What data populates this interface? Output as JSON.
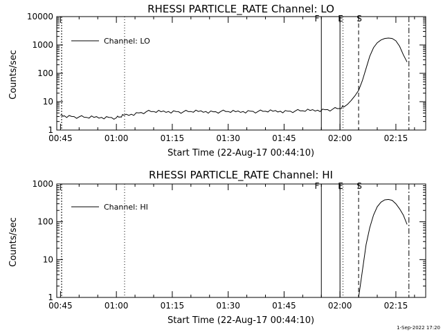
{
  "footer_date": "1-Sep-2022 17:20",
  "chart_data": [
    {
      "type": "line",
      "title": "RHESSI PARTICLE_RATE Channel: LO",
      "xlabel": "Start Time (22-Aug-17 00:44:10)",
      "ylabel": "Counts/sec",
      "x_ticks": [
        "00:45",
        "01:00",
        "01:15",
        "01:30",
        "01:45",
        "02:00",
        "02:15"
      ],
      "y_ticks": [
        "1",
        "10",
        "100",
        "1000",
        "10000"
      ],
      "xlim": [
        "00:44",
        "02:23"
      ],
      "ylim": [
        1,
        10000
      ],
      "y_scale": "log",
      "grid": false,
      "legend_position": "top-left",
      "series": [
        {
          "name": "Channel: LO",
          "x": [
            "00:45",
            "00:46",
            "00:48",
            "00:50",
            "00:52",
            "00:54",
            "00:56",
            "00:58",
            "01:00",
            "01:01",
            "01:02",
            "01:04",
            "01:06",
            "01:08",
            "01:10",
            "01:12",
            "01:14",
            "01:16",
            "01:18",
            "01:20",
            "01:22",
            "01:24",
            "01:26",
            "01:28",
            "01:30",
            "01:32",
            "01:34",
            "01:36",
            "01:38",
            "01:40",
            "01:42",
            "01:44",
            "01:46",
            "01:48",
            "01:50",
            "01:52",
            "01:54",
            "01:56",
            "01:58",
            "02:00",
            "02:01",
            "02:02",
            "02:03",
            "02:04",
            "02:05",
            "02:06",
            "02:07",
            "02:08",
            "02:09",
            "02:10",
            "02:11",
            "02:12",
            "02:13",
            "02:14",
            "02:15",
            "02:16",
            "02:17",
            "02:18"
          ],
          "values": [
            3.3,
            3.2,
            3.0,
            2.9,
            2.8,
            2.8,
            2.8,
            2.8,
            2.7,
            2.9,
            3.3,
            3.6,
            4.0,
            4.4,
            4.5,
            4.4,
            4.5,
            4.5,
            4.4,
            4.5,
            4.5,
            4.5,
            4.4,
            4.5,
            4.5,
            4.4,
            4.5,
            4.6,
            4.5,
            4.6,
            4.6,
            4.6,
            4.6,
            4.7,
            4.8,
            4.9,
            5.0,
            5.2,
            5.4,
            5.8,
            6.5,
            8,
            11,
            16,
            25,
            55,
            150,
            400,
            800,
            1200,
            1500,
            1700,
            1750,
            1700,
            1400,
            900,
            450,
            250
          ]
        }
      ],
      "markers": [
        {
          "label": "F",
          "x": "01:55",
          "style": "solid"
        },
        {
          "label": "E",
          "x": "02:00",
          "style": "solid"
        },
        {
          "label": "S",
          "x": "02:05",
          "style": "dashed"
        }
      ]
    },
    {
      "type": "line",
      "title": "RHESSI PARTICLE_RATE Channel: HI",
      "xlabel": "Start Time (22-Aug-17 00:44:10)",
      "ylabel": "Counts/sec",
      "x_ticks": [
        "00:45",
        "01:00",
        "01:15",
        "01:30",
        "01:45",
        "02:00",
        "02:15"
      ],
      "y_ticks": [
        "1",
        "10",
        "100",
        "1000"
      ],
      "xlim": [
        "00:44",
        "02:23"
      ],
      "ylim": [
        1,
        1000
      ],
      "y_scale": "log",
      "grid": false,
      "legend_position": "top-left",
      "series": [
        {
          "name": "Channel: HI",
          "x": [
            "02:05",
            "02:06",
            "02:07",
            "02:08",
            "02:09",
            "02:10",
            "02:11",
            "02:12",
            "02:13",
            "02:14",
            "02:15",
            "02:16",
            "02:17",
            "02:18"
          ],
          "values": [
            1.0,
            5,
            25,
            70,
            150,
            250,
            330,
            380,
            390,
            370,
            300,
            220,
            150,
            85
          ]
        }
      ],
      "markers": [
        {
          "label": "F",
          "x": "01:55",
          "style": "solid"
        },
        {
          "label": "E",
          "x": "02:00",
          "style": "solid"
        },
        {
          "label": "S",
          "x": "02:05",
          "style": "dashed"
        }
      ]
    }
  ]
}
